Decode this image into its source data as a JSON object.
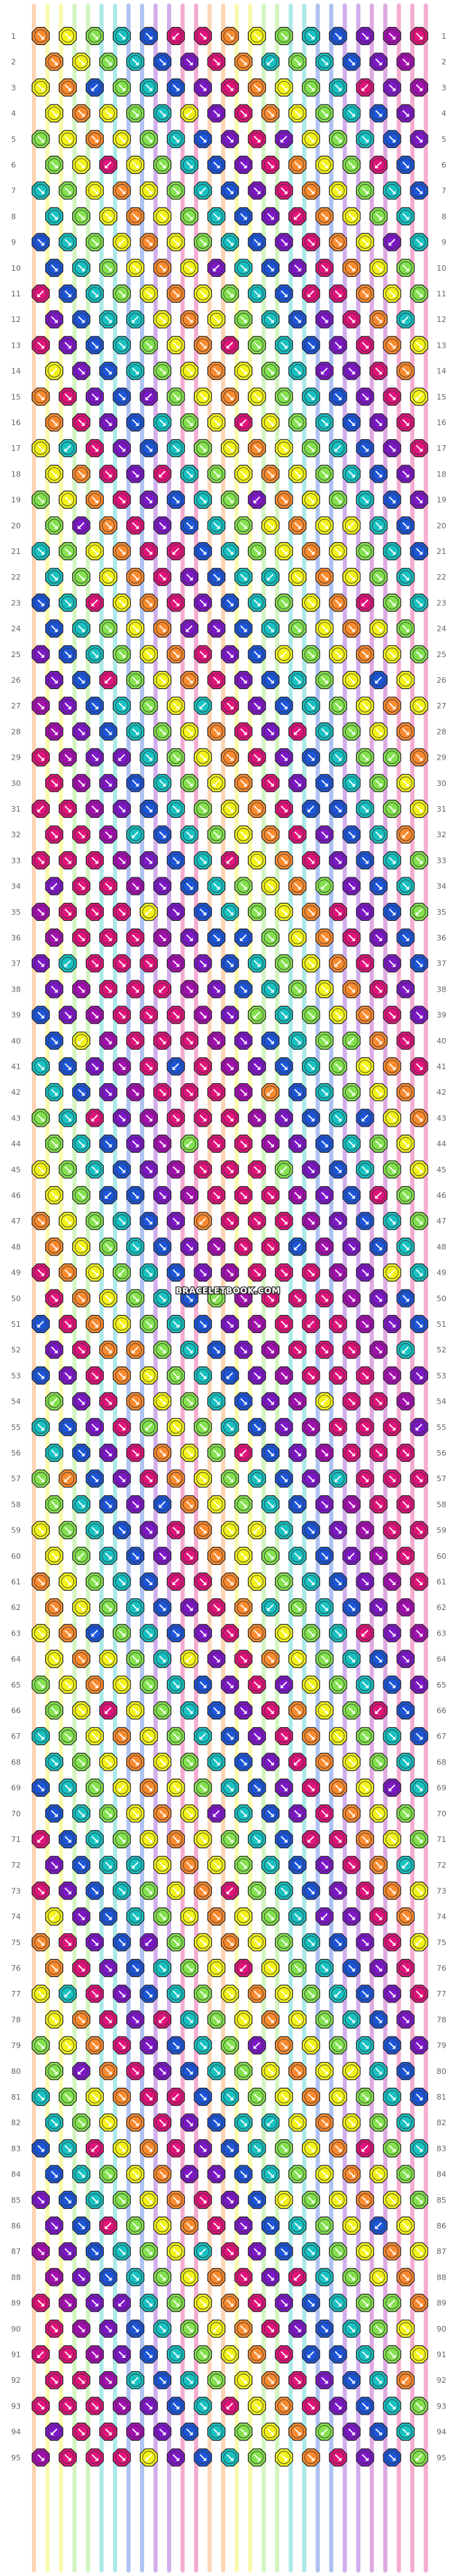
{
  "watermark": "BRACELETBOOK.COM",
  "colors": {
    "orange": "#fa8a2e",
    "yellow": "#f3f31a",
    "lime": "#84e14e",
    "teal": "#17c1c1",
    "blue": "#1c55d8",
    "purple": "#7d17c7",
    "magenta": "#e0137a",
    "violet": "#a30faf"
  },
  "strand_order": [
    "orange",
    "yellow",
    "yellow",
    "lime",
    "lime",
    "teal",
    "teal",
    "blue",
    "blue",
    "purple",
    "purple",
    "magenta",
    "magenta",
    "orange",
    "orange",
    "yellow",
    "yellow",
    "lime",
    "lime",
    "teal",
    "teal",
    "blue",
    "blue",
    "purple",
    "purple",
    "violet",
    "violet",
    "magenta",
    "magenta",
    "magenta"
  ],
  "pattern": {
    "rows": 95,
    "knots_per_even_row": 15,
    "knots_per_odd_row": 14,
    "knot_arrow_icons": [
      "arrow-down-right-icon",
      "arrow-down-left-icon"
    ]
  },
  "row_labels": [
    "1",
    "2",
    "3",
    "4",
    "5",
    "6",
    "7",
    "8",
    "9",
    "10",
    "11",
    "12",
    "13",
    "14",
    "15",
    "16",
    "17",
    "18",
    "19",
    "20",
    "21",
    "22",
    "23",
    "24",
    "25",
    "26",
    "27",
    "28",
    "29",
    "30",
    "31",
    "32",
    "33",
    "34",
    "35",
    "36",
    "37",
    "38",
    "39",
    "40",
    "41",
    "42",
    "43",
    "44",
    "45",
    "46",
    "47",
    "48",
    "49",
    "50",
    "51",
    "52",
    "53",
    "54",
    "55",
    "56",
    "57",
    "58",
    "59",
    "60",
    "61",
    "62",
    "63",
    "64",
    "65",
    "66",
    "67",
    "68",
    "69",
    "70",
    "71",
    "72",
    "73",
    "74",
    "75",
    "76",
    "77",
    "78",
    "79",
    "80",
    "81",
    "82",
    "83",
    "84",
    "85",
    "86",
    "87",
    "88",
    "89",
    "90",
    "91",
    "92",
    "93",
    "94",
    "95"
  ]
}
